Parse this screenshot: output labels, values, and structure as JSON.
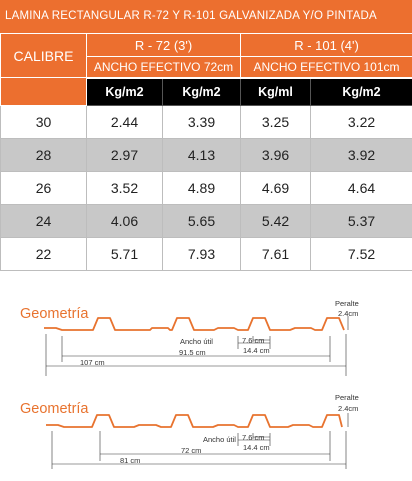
{
  "title": "LAMINA RECTANGULAR R-72 Y R-101 GALVANIZADA Y/O PINTADA",
  "table": {
    "calibre_header": "CALIBRE",
    "groups": [
      {
        "name": "R - 72 (3')",
        "ancho": "ANCHO  EFECTIVO 72cm"
      },
      {
        "name": "R - 101 (4')",
        "ancho": "ANCHO  EFECTIVO 101cm"
      }
    ],
    "units": [
      "Kg/m2",
      "Kg/m2",
      "Kg/ml",
      "Kg/m2"
    ],
    "rows": [
      {
        "calibre": "30",
        "values": [
          "2.44",
          "3.39",
          "3.25",
          "3.22"
        ]
      },
      {
        "calibre": "28",
        "values": [
          "2.97",
          "4.13",
          "3.96",
          "3.92"
        ]
      },
      {
        "calibre": "26",
        "values": [
          "3.52",
          "4.89",
          "4.69",
          "4.64"
        ]
      },
      {
        "calibre": "24",
        "values": [
          "4.06",
          "5.65",
          "5.42",
          "5.37"
        ]
      },
      {
        "calibre": "22",
        "values": [
          "5.71",
          "7.93",
          "7.61",
          "7.52"
        ]
      }
    ]
  },
  "geometry": [
    {
      "title": "Geometría",
      "peralte_label": "Peralte",
      "peralte_value": "2.4cm",
      "ancho_util": "Ancho útil",
      "dim_small_1": "7.6 cm",
      "dim_small_2": "14.4 cm",
      "dim_mid": "91.5 cm",
      "dim_total": "107 cm"
    },
    {
      "title": "Geometría",
      "peralte_label": "Peralte",
      "peralte_value": "2.4cm",
      "ancho_util": "Ancho útil",
      "dim_small_1": "7.6 cm",
      "dim_small_2": "14.4 cm",
      "dim_mid": "72 cm",
      "dim_total": "81 cm"
    }
  ]
}
